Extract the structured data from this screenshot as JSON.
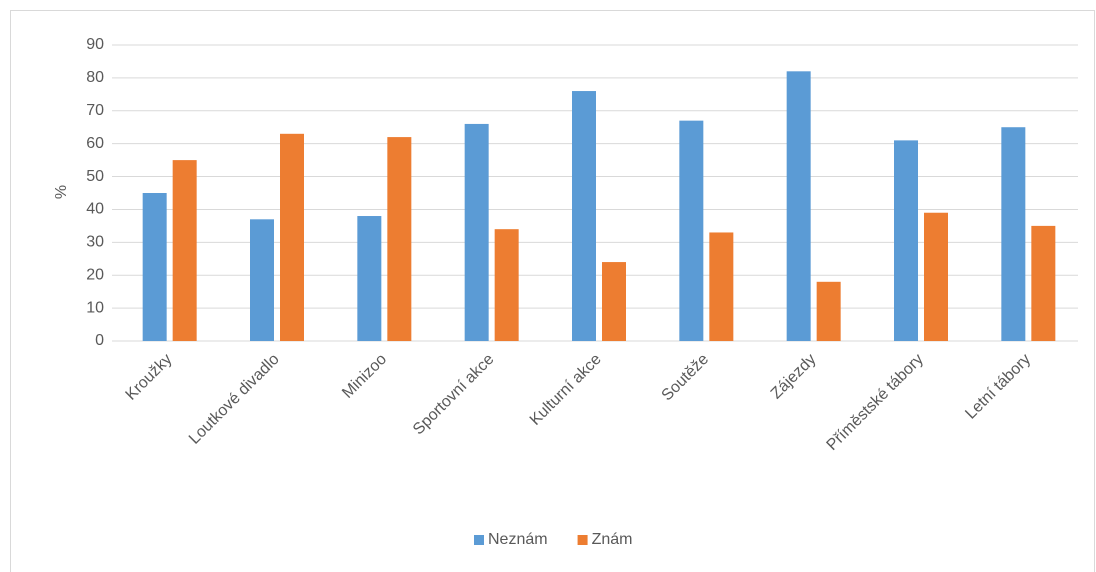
{
  "chart_data": {
    "type": "bar",
    "y_label": "%",
    "categories": [
      "Kroužky",
      "Loutkové divadlo",
      "Minizoo",
      "Sportovní akce",
      "Kulturní akce",
      "Soutěže",
      "Zájezdy",
      "Příměstské tábory",
      "Letní tábory"
    ],
    "series": [
      {
        "name": "Neznám",
        "color": "#5b9bd5",
        "values": [
          45,
          37,
          38,
          66,
          76,
          67,
          82,
          61,
          65
        ]
      },
      {
        "name": "Znám",
        "color": "#ed7d31",
        "values": [
          55,
          63,
          62,
          34,
          24,
          33,
          18,
          39,
          35
        ]
      }
    ],
    "ylim": [
      0,
      90
    ],
    "yticks": [
      0,
      10,
      20,
      30,
      40,
      50,
      60,
      70,
      80,
      90
    ],
    "grid": true,
    "legend": "bottom"
  }
}
